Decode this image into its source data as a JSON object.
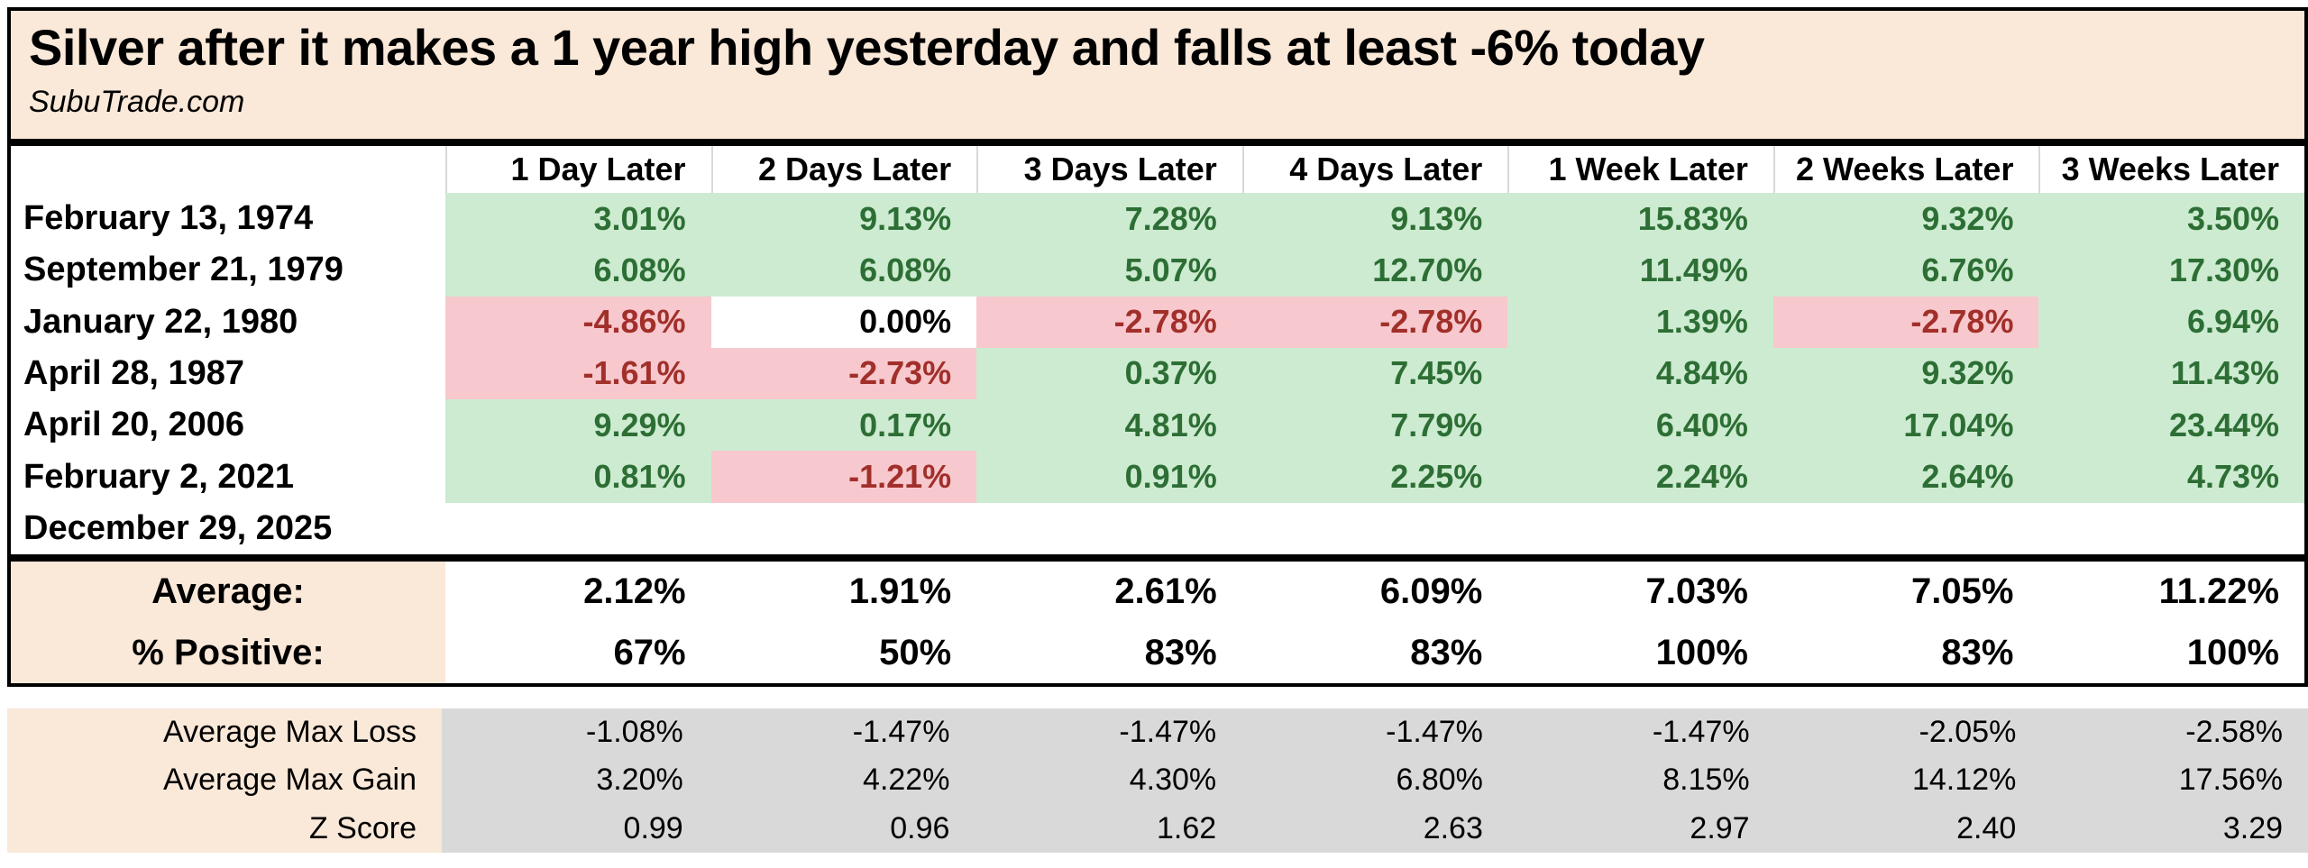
{
  "title": "Silver after it makes a 1 year high yesterday and falls at least -6% today",
  "subtitle": "SubuTrade.com",
  "colors": {
    "title_bg": "#fae8d8",
    "positive_bg": "#ccebd0",
    "positive_text": "#2d6e35",
    "negative_bg": "#f7c8cd",
    "negative_text": "#a12f2a",
    "stats_bg": "#d9d9d9",
    "border": "#000000"
  },
  "columns": [
    "1 Day Later",
    "2 Days Later",
    "3 Days Later",
    "4 Days Later",
    "1 Week Later",
    "2 Weeks Later",
    "3 Weeks Later"
  ],
  "rows": [
    {
      "date": "February 13, 1974",
      "cells": [
        {
          "v": "3.01%",
          "s": "pos"
        },
        {
          "v": "9.13%",
          "s": "pos"
        },
        {
          "v": "7.28%",
          "s": "pos"
        },
        {
          "v": "9.13%",
          "s": "pos"
        },
        {
          "v": "15.83%",
          "s": "pos"
        },
        {
          "v": "9.32%",
          "s": "pos"
        },
        {
          "v": "3.50%",
          "s": "pos"
        }
      ]
    },
    {
      "date": "September 21, 1979",
      "cells": [
        {
          "v": "6.08%",
          "s": "pos"
        },
        {
          "v": "6.08%",
          "s": "pos"
        },
        {
          "v": "5.07%",
          "s": "pos"
        },
        {
          "v": "12.70%",
          "s": "pos"
        },
        {
          "v": "11.49%",
          "s": "pos"
        },
        {
          "v": "6.76%",
          "s": "pos"
        },
        {
          "v": "17.30%",
          "s": "pos"
        }
      ]
    },
    {
      "date": "January 22, 1980",
      "cells": [
        {
          "v": "-4.86%",
          "s": "neg"
        },
        {
          "v": "0.00%",
          "s": "zero"
        },
        {
          "v": "-2.78%",
          "s": "neg"
        },
        {
          "v": "-2.78%",
          "s": "neg"
        },
        {
          "v": "1.39%",
          "s": "pos"
        },
        {
          "v": "-2.78%",
          "s": "neg"
        },
        {
          "v": "6.94%",
          "s": "pos"
        }
      ]
    },
    {
      "date": "April 28, 1987",
      "cells": [
        {
          "v": "-1.61%",
          "s": "neg"
        },
        {
          "v": "-2.73%",
          "s": "neg"
        },
        {
          "v": "0.37%",
          "s": "pos"
        },
        {
          "v": "7.45%",
          "s": "pos"
        },
        {
          "v": "4.84%",
          "s": "pos"
        },
        {
          "v": "9.32%",
          "s": "pos"
        },
        {
          "v": "11.43%",
          "s": "pos"
        }
      ]
    },
    {
      "date": "April 20, 2006",
      "cells": [
        {
          "v": "9.29%",
          "s": "pos"
        },
        {
          "v": "0.17%",
          "s": "pos"
        },
        {
          "v": "4.81%",
          "s": "pos"
        },
        {
          "v": "7.79%",
          "s": "pos"
        },
        {
          "v": "6.40%",
          "s": "pos"
        },
        {
          "v": "17.04%",
          "s": "pos"
        },
        {
          "v": "23.44%",
          "s": "pos"
        }
      ]
    },
    {
      "date": "February 2, 2021",
      "cells": [
        {
          "v": "0.81%",
          "s": "pos"
        },
        {
          "v": "-1.21%",
          "s": "neg"
        },
        {
          "v": "0.91%",
          "s": "pos"
        },
        {
          "v": "2.25%",
          "s": "pos"
        },
        {
          "v": "2.24%",
          "s": "pos"
        },
        {
          "v": "2.64%",
          "s": "pos"
        },
        {
          "v": "4.73%",
          "s": "pos"
        }
      ]
    },
    {
      "date": "December 29, 2025",
      "cells": [
        {
          "v": "",
          "s": "none"
        },
        {
          "v": "",
          "s": "none"
        },
        {
          "v": "",
          "s": "none"
        },
        {
          "v": "",
          "s": "none"
        },
        {
          "v": "",
          "s": "none"
        },
        {
          "v": "",
          "s": "none"
        },
        {
          "v": "",
          "s": "none"
        }
      ]
    }
  ],
  "summary": {
    "average_label": "Average:",
    "average": [
      "2.12%",
      "1.91%",
      "2.61%",
      "6.09%",
      "7.03%",
      "7.05%",
      "11.22%"
    ],
    "positive_label": "% Positive:",
    "positive": [
      "67%",
      "50%",
      "83%",
      "83%",
      "100%",
      "83%",
      "100%"
    ]
  },
  "stats": [
    {
      "label": "Average Max Loss",
      "values": [
        "-1.08%",
        "-1.47%",
        "-1.47%",
        "-1.47%",
        "-1.47%",
        "-2.05%",
        "-2.58%"
      ]
    },
    {
      "label": "Average Max Gain",
      "values": [
        "3.20%",
        "4.22%",
        "4.30%",
        "6.80%",
        "8.15%",
        "14.12%",
        "17.56%"
      ]
    },
    {
      "label": "Z Score",
      "values": [
        "0.99",
        "0.96",
        "1.62",
        "2.63",
        "2.97",
        "2.40",
        "3.29"
      ]
    }
  ]
}
